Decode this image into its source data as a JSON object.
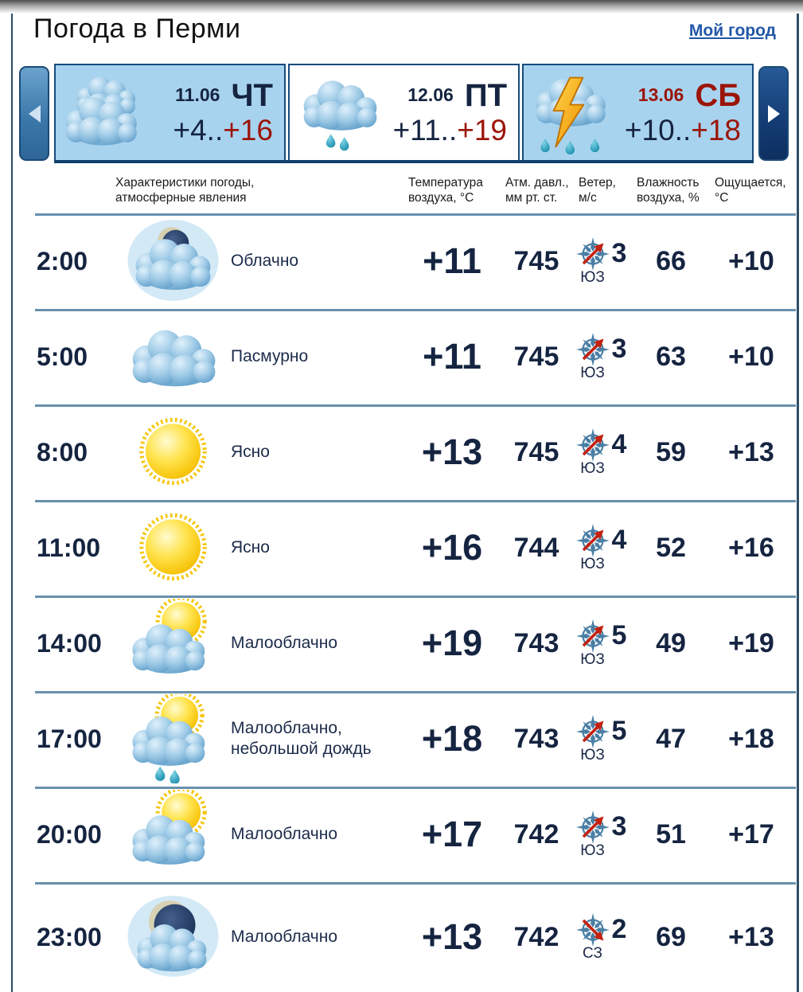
{
  "header": {
    "title": "Погода в Перми",
    "my_city_link": "Мой город"
  },
  "carousel": {
    "separator": "..",
    "prev_icon": "left-triangle",
    "next_icon": "right-triangle",
    "days": [
      {
        "date": "11.06",
        "day": "ЧТ",
        "temp_low": "+4",
        "temp_high": "+16",
        "icon": "cloudy",
        "selected": false,
        "weekend": false
      },
      {
        "date": "12.06",
        "day": "ПТ",
        "temp_low": "+11",
        "temp_high": "+19",
        "icon": "rain-cloud",
        "selected": true,
        "weekend": false
      },
      {
        "date": "13.06",
        "day": "СБ",
        "temp_low": "+10",
        "temp_high": "+18",
        "icon": "thunderstorm",
        "selected": false,
        "weekend": true
      }
    ]
  },
  "table": {
    "headers": {
      "characteristics": "Характеристики погоды,\nатмосферные явления",
      "temperature": "Температура\nвоздуха, °C",
      "pressure": "Атм. давл.,\nмм рт. ст.",
      "wind": "Ветер,\nм/с",
      "humidity": "Влажность\nвоздуха, %",
      "feels_like": "Ощущается,\n°C"
    },
    "rows": [
      {
        "time": "2:00",
        "icon": "cloud-moon",
        "description": "Облачно",
        "temperature": "+11",
        "pressure": "745",
        "wind_direction": "ЮЗ",
        "wind_speed": "3",
        "humidity": "66",
        "feels_like": "+10"
      },
      {
        "time": "5:00",
        "icon": "cloud",
        "description": "Пасмурно",
        "temperature": "+11",
        "pressure": "745",
        "wind_direction": "ЮЗ",
        "wind_speed": "3",
        "humidity": "63",
        "feels_like": "+10"
      },
      {
        "time": "8:00",
        "icon": "sun",
        "description": "Ясно",
        "temperature": "+13",
        "pressure": "745",
        "wind_direction": "ЮЗ",
        "wind_speed": "4",
        "humidity": "59",
        "feels_like": "+13"
      },
      {
        "time": "11:00",
        "icon": "sun",
        "description": "Ясно",
        "temperature": "+16",
        "pressure": "744",
        "wind_direction": "ЮЗ",
        "wind_speed": "4",
        "humidity": "52",
        "feels_like": "+16"
      },
      {
        "time": "14:00",
        "icon": "sun-cloud",
        "description": "Малооблачно",
        "temperature": "+19",
        "pressure": "743",
        "wind_direction": "ЮЗ",
        "wind_speed": "5",
        "humidity": "49",
        "feels_like": "+19"
      },
      {
        "time": "17:00",
        "icon": "sun-cloud-rain",
        "description": "Малооблачно, небольшой дождь",
        "temperature": "+18",
        "pressure": "743",
        "wind_direction": "ЮЗ",
        "wind_speed": "5",
        "humidity": "47",
        "feels_like": "+18"
      },
      {
        "time": "20:00",
        "icon": "sun-cloud",
        "description": "Малооблачно",
        "temperature": "+17",
        "pressure": "742",
        "wind_direction": "ЮЗ",
        "wind_speed": "3",
        "humidity": "51",
        "feels_like": "+17"
      },
      {
        "time": "23:00",
        "icon": "moon-cloud",
        "description": "Малооблачно",
        "temperature": "+13",
        "pressure": "742",
        "wind_direction": "СЗ",
        "wind_speed": "2",
        "humidity": "69",
        "feels_like": "+13"
      }
    ]
  },
  "colors": {
    "text_navy": "#152440",
    "accent_red": "#9b1408",
    "link_blue": "#2257a8",
    "card_blue": "#a8d3ef",
    "divider_blue": "#6990ad"
  }
}
